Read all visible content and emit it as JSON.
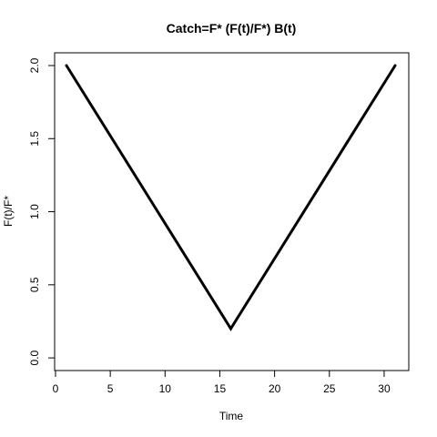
{
  "chart_data": {
    "type": "line",
    "title": "Catch=F* (F(t)/F*) B(t)",
    "xlabel": "Time",
    "ylabel": "F(t)/F*",
    "xlim": [
      1,
      31
    ],
    "ylim": [
      0.2,
      2.0
    ],
    "xticks": [
      0,
      5,
      10,
      15,
      20,
      25,
      30
    ],
    "yticks": [
      0.0,
      0.5,
      1.0,
      1.5,
      2.0
    ],
    "xtick_labels": [
      "0",
      "5",
      "10",
      "15",
      "20",
      "25",
      "30"
    ],
    "ytick_labels": [
      "0.0",
      "0.5",
      "1.0",
      "1.5",
      "2.0"
    ],
    "grid": false,
    "series": [
      {
        "color": "#000000",
        "x": [
          1,
          16,
          31
        ],
        "y": [
          2.0,
          0.2,
          2.0
        ]
      }
    ]
  }
}
